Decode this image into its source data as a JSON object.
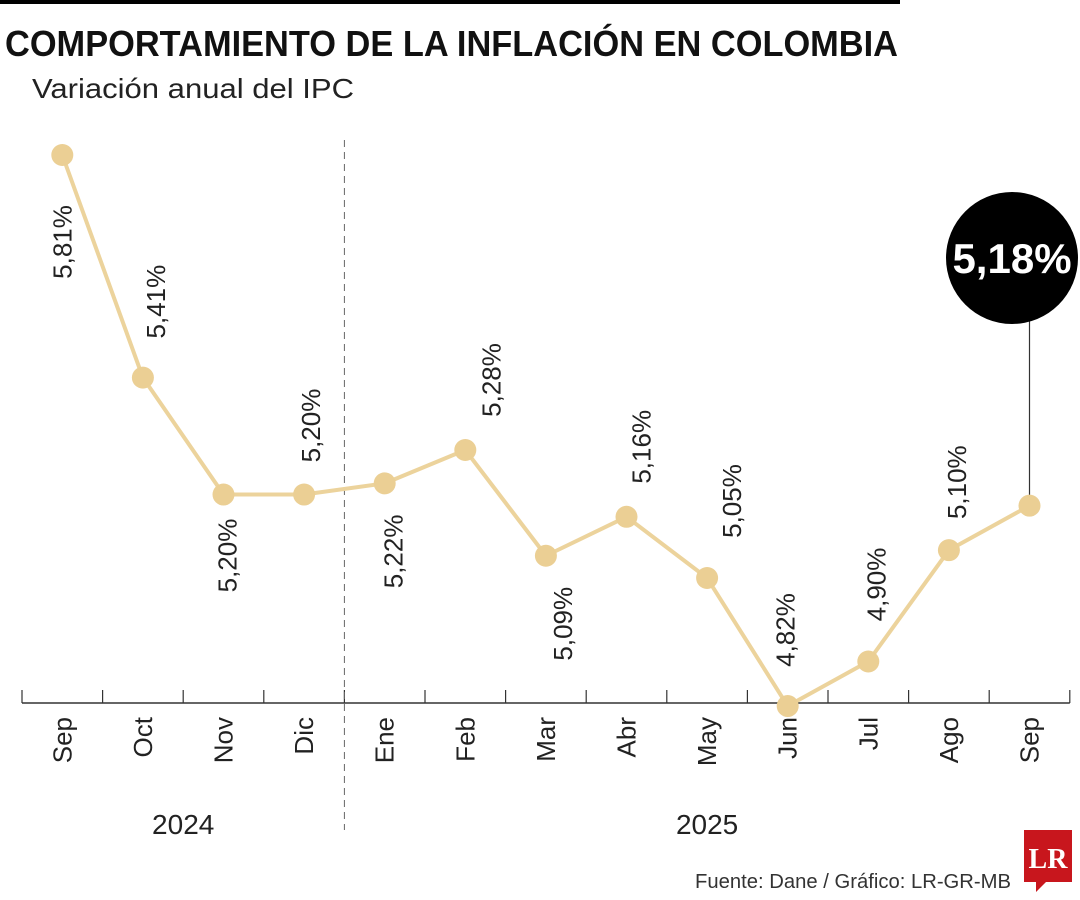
{
  "chart_data": {
    "type": "line",
    "title": "COMPORTAMIENTO DE LA INFLACIÓN EN COLOMBIA",
    "subtitle": "Variación anual del IPC",
    "categories": [
      "Sep",
      "Oct",
      "Nov",
      "Dic",
      "Ene",
      "Feb",
      "Mar",
      "Abr",
      "May",
      "Jun",
      "Jul",
      "Ago",
      "Sep"
    ],
    "years": [
      {
        "label": "2024",
        "months": [
          "Sep",
          "Oct",
          "Nov",
          "Dic"
        ]
      },
      {
        "label": "2025",
        "months": [
          "Ene",
          "Feb",
          "Mar",
          "Abr",
          "May",
          "Jun",
          "Jul",
          "Ago",
          "Sep"
        ]
      }
    ],
    "values": [
      5.81,
      5.41,
      5.2,
      5.2,
      5.22,
      5.28,
      5.09,
      5.16,
      5.05,
      4.82,
      4.9,
      5.1,
      5.18
    ],
    "labels": [
      "5,81%",
      "5,41%",
      "5,20%",
      "5,20%",
      "5,22%",
      "5,28%",
      "5,09%",
      "5,16%",
      "5,05%",
      "4,82%",
      "4,90%",
      "5,10%",
      "5,18%"
    ],
    "highlight": {
      "index": 12,
      "label": "5,18%"
    },
    "grid": false,
    "colors": {
      "line": "#ecd39c",
      "point": "#ebcf94",
      "highlight": "#000000",
      "logo": "#c8161d"
    }
  },
  "footer": {
    "source": "Fuente: Dane / Gráfico: LR-GR-MB",
    "logo_text": "LR"
  }
}
